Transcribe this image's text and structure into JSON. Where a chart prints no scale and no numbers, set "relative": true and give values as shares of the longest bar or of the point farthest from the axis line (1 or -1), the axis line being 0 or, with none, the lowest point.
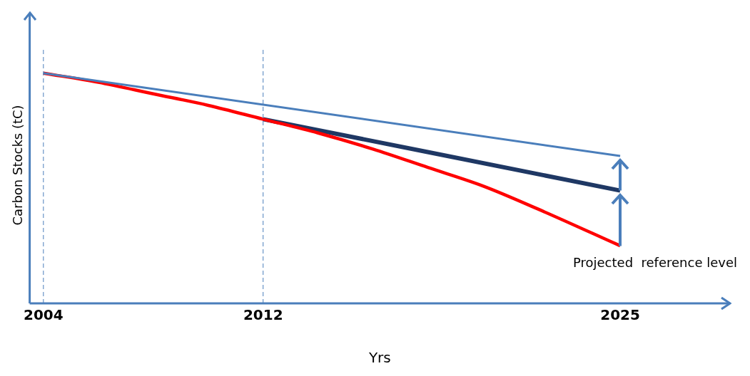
{
  "chart_data": {
    "type": "line",
    "relative": true,
    "xlabel": "Yrs",
    "ylabel": "Carbon Stocks (tC)",
    "xlim": [
      2003.5,
      2029
    ],
    "xticks": [
      2004,
      2012,
      2025
    ],
    "grid": false,
    "legend": false,
    "marker": "none",
    "line_style": "solid",
    "series": [
      {
        "color": "#4a7ebb",
        "x": [
          2004,
          2025
        ],
        "values": [
          1,
          0.64
        ]
      },
      {
        "color": "#ff0000",
        "x": [
          2004,
          2006,
          2008,
          2010,
          2012,
          2014,
          2016,
          2018,
          2020,
          2022,
          2025
        ],
        "values": [
          1,
          0.96,
          0.91,
          0.86,
          0.8,
          0.74,
          0.67,
          0.59,
          0.51,
          0.41,
          0.25
        ]
      },
      {
        "color": "#1f3864",
        "x": [
          2012,
          2025
        ],
        "values": [
          0.8,
          0.49
        ]
      }
    ],
    "ref_lines": [
      {
        "axis": "x",
        "value": 2004,
        "color": "#4a7ebb",
        "line_style": "dashed"
      },
      {
        "axis": "x",
        "value": 2012,
        "color": "#4a7ebb",
        "line_style": "dashed"
      }
    ],
    "annotations": [
      "Projected  reference level"
    ]
  }
}
